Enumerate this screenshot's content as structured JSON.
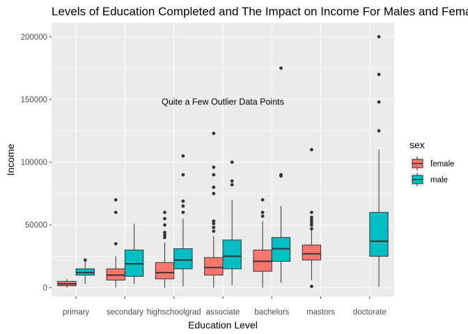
{
  "chart_data": {
    "type": "boxplot",
    "title": "Levels of Education Completed and The Impact on Income For Males and Females",
    "xlabel": "Education Level",
    "ylabel": "Income",
    "categories": [
      "primary",
      "secondary",
      "highschoolgrad",
      "associate",
      "bachelors",
      "mastors",
      "doctorate"
    ],
    "ylim": [
      -7000,
      211000
    ],
    "yticks": [
      0,
      50000,
      100000,
      150000,
      200000
    ],
    "ytick_labels": [
      "0",
      "50000",
      "100000",
      "150000",
      "200000"
    ],
    "grid": true,
    "annotation": {
      "text": "Quite a Few Outlier Data Points",
      "x": "associate",
      "y": 148000
    },
    "legend": {
      "title": "sex",
      "position": "right"
    },
    "series": [
      {
        "name": "female",
        "color": "#F8766D",
        "boxes": [
          {
            "category": "primary",
            "whisker_low": 0,
            "q1": 1500,
            "median": 3000,
            "q3": 5000,
            "whisker_high": 7000,
            "outliers": []
          },
          {
            "category": "secondary",
            "whisker_low": 0,
            "q1": 6000,
            "median": 10000,
            "q3": 15000,
            "whisker_high": 25000,
            "outliers": [
              35000,
              60000,
              70000
            ]
          },
          {
            "category": "highschoolgrad",
            "whisker_low": 0,
            "q1": 7000,
            "median": 12000,
            "q3": 20000,
            "whisker_high": 36000,
            "outliers": [
              40000,
              42000,
              44000,
              50000,
              55000,
              60000
            ]
          },
          {
            "category": "associate",
            "whisker_low": 0,
            "q1": 10000,
            "median": 16000,
            "q3": 24000,
            "whisker_high": 41000,
            "outliers": [
              45000,
              48000,
              51000,
              53000,
              75000,
              80000,
              90000,
              96000,
              123000
            ]
          },
          {
            "category": "bachelors",
            "whisker_low": 0,
            "q1": 13000,
            "median": 21000,
            "q3": 30000,
            "whisker_high": 53000,
            "outliers": [
              57000,
              60000,
              70000
            ]
          },
          {
            "category": "mastors",
            "whisker_low": 6000,
            "q1": 22000,
            "median": 27000,
            "q3": 34000,
            "whisker_high": 46000,
            "outliers": [
              1000,
              47000,
              50000,
              52000,
              54000,
              56000,
              60000,
              110000
            ]
          },
          {
            "category": "doctorate",
            "missing": true
          }
        ]
      },
      {
        "name": "male",
        "color": "#00BFC4",
        "boxes": [
          {
            "category": "primary",
            "whisker_low": 3000,
            "q1": 10000,
            "median": 12000,
            "q3": 15000,
            "whisker_high": 21000,
            "outliers": [
              22000
            ]
          },
          {
            "category": "secondary",
            "whisker_low": 3000,
            "q1": 9000,
            "median": 19000,
            "q3": 30000,
            "whisker_high": 51000,
            "outliers": []
          },
          {
            "category": "highschoolgrad",
            "whisker_low": 1000,
            "q1": 15000,
            "median": 22000,
            "q3": 31000,
            "whisker_high": 55000,
            "outliers": [
              60000,
              65000,
              69000,
              90000,
              105000
            ]
          },
          {
            "category": "associate",
            "whisker_low": 2000,
            "q1": 15000,
            "median": 25000,
            "q3": 38000,
            "whisker_high": 70000,
            "outliers": [
              82000,
              85000,
              100000
            ]
          },
          {
            "category": "bachelors",
            "whisker_low": 4000,
            "q1": 21000,
            "median": 31000,
            "q3": 40000,
            "whisker_high": 65000,
            "outliers": [
              89000,
              90000,
              175000
            ]
          },
          {
            "category": "mastors",
            "missing": true
          },
          {
            "category": "doctorate",
            "whisker_low": 1000,
            "q1": 25000,
            "median": 37000,
            "q3": 60000,
            "whisker_high": 110000,
            "outliers": [
              125000,
              148000,
              170000,
              200000
            ]
          }
        ]
      }
    ]
  }
}
